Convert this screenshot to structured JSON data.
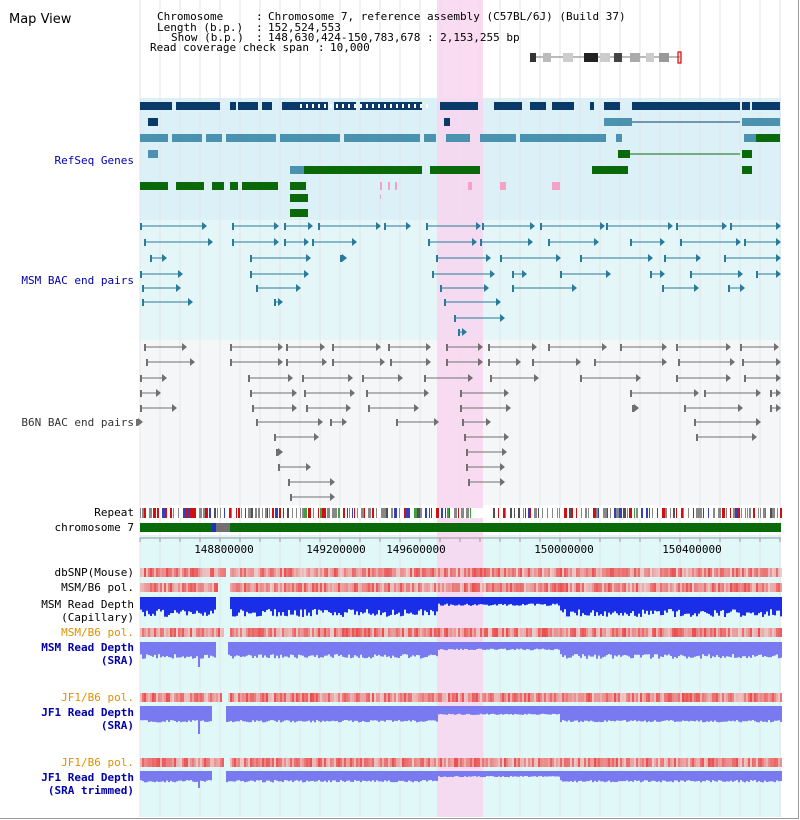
{
  "page_title": "Map View",
  "info": {
    "chromosome_label": "Chromosome",
    "chromosome_value": "Chromosome 7, reference assembly (C57BL/6J) (Build 37)",
    "length_label": "Length (b.p.)",
    "length_value": "152,524,553",
    "show_label": "Show (b.p.)",
    "show_value": "148,630,424-150,783,678 : 2,153,255 bp",
    "coverage_label": "Read coverage check span",
    "coverage_value": "10,000"
  },
  "view": {
    "start": 148630424,
    "end": 150783678
  },
  "highlight": {
    "start": 149630000,
    "end": 149780000
  },
  "axis": {
    "ticks": [
      "148800000",
      "149200000",
      "149600000",
      "150000000",
      "150400000"
    ]
  },
  "tracks": {
    "refseq": "RefSeq Genes",
    "msm_bac": "MSM BAC end pairs",
    "b6n_bac": "B6N BAC end pairs",
    "repeat": "Repeat",
    "chromosome": "chromosome 7",
    "dbsnp": "dbSNP(Mouse)",
    "msm_b6_pol": "MSM/B6 pol.",
    "msm_depth_cap_1": "MSM Read Depth",
    "msm_depth_cap_2": "(Capillary)",
    "msm_b6_pol_sra": "MSM/B6 pol.",
    "msm_depth_sra_1": "MSM Read Depth",
    "msm_depth_sra_2": "(SRA)",
    "jf1_b6_pol": "JF1/B6 pol.",
    "jf1_depth_1": "JF1 Read Depth",
    "jf1_depth_2": "(SRA)",
    "jf1_b6_pol_trim": "JF1/B6 pol.",
    "jf1_trim_1": "JF1 Read Depth",
    "jf1_trim_2": "(SRA trimmed)"
  },
  "colors": {
    "refseq_bg": "#dcf0f8",
    "msm_bg": "#e4f6f8",
    "b6n_bg": "#f4f6f8",
    "depth_bg": "#e0f8f8",
    "highlight": "#f8d6f0",
    "gene_dark": "#0a3a6a",
    "gene_mid": "#4a92b0",
    "gene_green": "#0a6a0a",
    "gene_pink": "#f7a0c8",
    "msm_bac": "#2a7a9a",
    "b6n_bac": "#707070",
    "chromosome": "#0a6a0a",
    "label_blue": "#0000aa",
    "label_orange": "#e09000",
    "depth_capillary": "#1a2ee8",
    "depth_sra": "#7a7af0"
  }
}
